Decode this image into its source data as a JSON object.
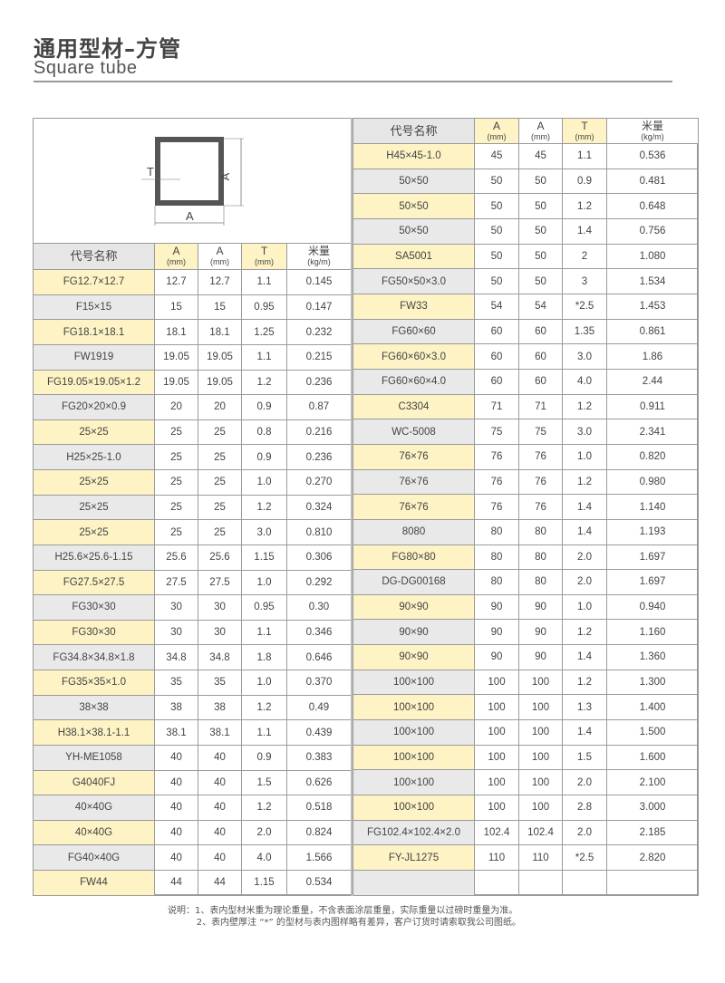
{
  "header": {
    "title_cn": "通用型材–方管",
    "title_en": "Square tube"
  },
  "diagram": {
    "label_t": "T",
    "label_a_side": "A",
    "label_a_bottom": "A"
  },
  "columns": [
    {
      "label": "代号名称",
      "unit": ""
    },
    {
      "label": "A",
      "unit": "(mm)"
    },
    {
      "label": "A",
      "unit": "(mm)"
    },
    {
      "label": "T",
      "unit": "(mm)"
    },
    {
      "label": "米量",
      "unit": "(kg/m)"
    }
  ],
  "left_rows": [
    [
      "FG12.7×12.7",
      "12.7",
      "12.7",
      "1.1",
      "0.145"
    ],
    [
      "F15×15",
      "15",
      "15",
      "0.95",
      "0.147"
    ],
    [
      "FG18.1×18.1",
      "18.1",
      "18.1",
      "1.25",
      "0.232"
    ],
    [
      "FW1919",
      "19.05",
      "19.05",
      "1.1",
      "0.215"
    ],
    [
      "FG19.05×19.05×1.2",
      "19.05",
      "19.05",
      "1.2",
      "0.236"
    ],
    [
      "FG20×20×0.9",
      "20",
      "20",
      "0.9",
      "0.87"
    ],
    [
      "25×25",
      "25",
      "25",
      "0.8",
      "0.216"
    ],
    [
      "H25×25-1.0",
      "25",
      "25",
      "0.9",
      "0.236"
    ],
    [
      "25×25",
      "25",
      "25",
      "1.0",
      "0.270"
    ],
    [
      "25×25",
      "25",
      "25",
      "1.2",
      "0.324"
    ],
    [
      "25×25",
      "25",
      "25",
      "3.0",
      "0.810"
    ],
    [
      "H25.6×25.6-1.15",
      "25.6",
      "25.6",
      "1.15",
      "0.306"
    ],
    [
      "FG27.5×27.5",
      "27.5",
      "27.5",
      "1.0",
      "0.292"
    ],
    [
      "FG30×30",
      "30",
      "30",
      "0.95",
      "0.30"
    ],
    [
      "FG30×30",
      "30",
      "30",
      "1.1",
      "0.346"
    ],
    [
      "FG34.8×34.8×1.8",
      "34.8",
      "34.8",
      "1.8",
      "0.646"
    ],
    [
      "FG35×35×1.0",
      "35",
      "35",
      "1.0",
      "0.370"
    ],
    [
      "38×38",
      "38",
      "38",
      "1.2",
      "0.49"
    ],
    [
      "H38.1×38.1-1.1",
      "38.1",
      "38.1",
      "1.1",
      "0.439"
    ],
    [
      "YH-ME1058",
      "40",
      "40",
      "0.9",
      "0.383"
    ],
    [
      "G4040FJ",
      "40",
      "40",
      "1.5",
      "0.626"
    ],
    [
      "40×40G",
      "40",
      "40",
      "1.2",
      "0.518"
    ],
    [
      "40×40G",
      "40",
      "40",
      "2.0",
      "0.824"
    ],
    [
      "FG40×40G",
      "40",
      "40",
      "4.0",
      "1.566"
    ],
    [
      "FW44",
      "44",
      "44",
      "1.15",
      "0.534"
    ]
  ],
  "right_rows": [
    [
      "H45×45-1.0",
      "45",
      "45",
      "1.1",
      "0.536"
    ],
    [
      "50×50",
      "50",
      "50",
      "0.9",
      "0.481"
    ],
    [
      "50×50",
      "50",
      "50",
      "1.2",
      "0.648"
    ],
    [
      "50×50",
      "50",
      "50",
      "1.4",
      "0.756"
    ],
    [
      "SA5001",
      "50",
      "50",
      "2",
      "1.080"
    ],
    [
      "FG50×50×3.0",
      "50",
      "50",
      "3",
      "1.534"
    ],
    [
      "FW33",
      "54",
      "54",
      "*2.5",
      "1.453"
    ],
    [
      "FG60×60",
      "60",
      "60",
      "1.35",
      "0.861"
    ],
    [
      "FG60×60×3.0",
      "60",
      "60",
      "3.0",
      "1.86"
    ],
    [
      "FG60×60×4.0",
      "60",
      "60",
      "4.0",
      "2.44"
    ],
    [
      "C3304",
      "71",
      "71",
      "1.2",
      "0.911"
    ],
    [
      "WC-5008",
      "75",
      "75",
      "3.0",
      "2.341"
    ],
    [
      "76×76",
      "76",
      "76",
      "1.0",
      "0.820"
    ],
    [
      "76×76",
      "76",
      "76",
      "1.2",
      "0.980"
    ],
    [
      "76×76",
      "76",
      "76",
      "1.4",
      "1.140"
    ],
    [
      "8080",
      "80",
      "80",
      "1.4",
      "1.193"
    ],
    [
      "FG80×80",
      "80",
      "80",
      "2.0",
      "1.697"
    ],
    [
      "DG-DG00168",
      "80",
      "80",
      "2.0",
      "1.697"
    ],
    [
      "90×90",
      "90",
      "90",
      "1.0",
      "0.940"
    ],
    [
      "90×90",
      "90",
      "90",
      "1.2",
      "1.160"
    ],
    [
      "90×90",
      "90",
      "90",
      "1.4",
      "1.360"
    ],
    [
      "100×100",
      "100",
      "100",
      "1.2",
      "1.300"
    ],
    [
      "100×100",
      "100",
      "100",
      "1.3",
      "1.400"
    ],
    [
      "100×100",
      "100",
      "100",
      "1.4",
      "1.500"
    ],
    [
      "100×100",
      "100",
      "100",
      "1.5",
      "1.600"
    ],
    [
      "100×100",
      "100",
      "100",
      "2.0",
      "2.100"
    ],
    [
      "100×100",
      "100",
      "100",
      "2.8",
      "3.000"
    ],
    [
      "FG102.4×102.4×2.0",
      "102.4",
      "102.4",
      "2.0",
      "2.185"
    ],
    [
      "FY-JL1275",
      "110",
      "110",
      "*2.5",
      "2.820"
    ],
    [
      "",
      "",
      "",
      "",
      ""
    ]
  ],
  "notes": [
    "说明：1、表内型材米重为理论重量，不含表面涂层重量，实际重量以过磅时重量为准。",
    "          2、表内壁厚注 “*” 的型材与表内图样略有差异，客户订货时请索取我公司图纸。"
  ],
  "colors": {
    "highlight": "#fdf3c4",
    "row_grey": "#e9e9e9",
    "border": "#9a9a9a"
  }
}
